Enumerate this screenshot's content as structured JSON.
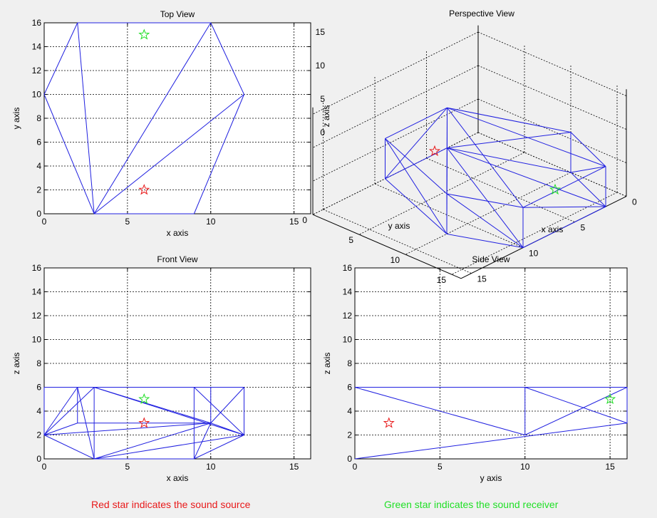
{
  "colors": {
    "wire": "#2020e0",
    "source": "#e8191a",
    "receiver": "#1fdf25",
    "caption_source": "#e8191a",
    "caption_receiver": "#1fdf25"
  },
  "captions": {
    "source": "Red star indicates the sound source",
    "receiver": "Green star indicates the sound receiver"
  },
  "chart_data": [
    {
      "type": "line",
      "title": "Top View",
      "xlabel": "x axis",
      "ylabel": "y axis",
      "xlim": [
        0,
        16
      ],
      "ylim": [
        0,
        16
      ],
      "xticks": [
        0,
        5,
        10,
        15
      ],
      "yticks": [
        0,
        2,
        4,
        6,
        8,
        10,
        12,
        14,
        16
      ],
      "grid": true,
      "segments": [
        [
          [
            2,
            16
          ],
          [
            10,
            16
          ]
        ],
        [
          [
            10,
            16
          ],
          [
            12,
            10
          ]
        ],
        [
          [
            12,
            10
          ],
          [
            9,
            0
          ]
        ],
        [
          [
            0,
            10
          ],
          [
            2,
            16
          ]
        ],
        [
          [
            0,
            10
          ],
          [
            3,
            0
          ]
        ],
        [
          [
            3,
            0
          ],
          [
            9,
            0
          ]
        ],
        [
          [
            2,
            16
          ],
          [
            3,
            0
          ]
        ],
        [
          [
            10,
            16
          ],
          [
            3,
            0
          ]
        ],
        [
          [
            12,
            10
          ],
          [
            3,
            0
          ]
        ]
      ],
      "markers": [
        {
          "x": 6,
          "y": 2,
          "role": "source"
        },
        {
          "x": 6,
          "y": 15,
          "role": "receiver"
        }
      ]
    },
    {
      "type": "line",
      "title": "Perspective View",
      "xlabel": "x axis",
      "ylabel": "y axis",
      "zlabel": "z axis",
      "xticks": [
        "0",
        "5",
        "10",
        "15"
      ],
      "yticks": [
        "0",
        "5",
        "10",
        "15"
      ],
      "zticks": [
        "0",
        "5",
        "10",
        "15"
      ],
      "grid": true,
      "projection": "3d",
      "markers": [
        {
          "x": 6,
          "y": 2,
          "z": 3,
          "role": "source"
        },
        {
          "x": 6,
          "y": 15,
          "z": 5,
          "role": "receiver"
        }
      ]
    },
    {
      "type": "line",
      "title": "Front View",
      "xlabel": "x axis",
      "ylabel": "z axis",
      "xlim": [
        0,
        16
      ],
      "ylim": [
        0,
        16
      ],
      "xticks": [
        0,
        5,
        10,
        15
      ],
      "yticks": [
        0,
        2,
        4,
        6,
        8,
        10,
        12,
        14,
        16
      ],
      "grid": true,
      "segments": [
        [
          [
            0,
            6
          ],
          [
            12,
            6
          ]
        ],
        [
          [
            0,
            6
          ],
          [
            0,
            2
          ]
        ],
        [
          [
            0,
            2
          ],
          [
            2,
            6
          ]
        ],
        [
          [
            0,
            2
          ],
          [
            3,
            6
          ]
        ],
        [
          [
            0,
            2
          ],
          [
            2,
            3
          ]
        ],
        [
          [
            0,
            2
          ],
          [
            3,
            0
          ]
        ],
        [
          [
            0,
            2
          ],
          [
            10,
            3
          ]
        ],
        [
          [
            2,
            6
          ],
          [
            2,
            3
          ]
        ],
        [
          [
            2,
            6
          ],
          [
            3,
            0
          ]
        ],
        [
          [
            3,
            6
          ],
          [
            3,
            0
          ]
        ],
        [
          [
            3,
            6
          ],
          [
            10,
            3
          ]
        ],
        [
          [
            3,
            6
          ],
          [
            12,
            2
          ]
        ],
        [
          [
            2,
            3
          ],
          [
            10,
            3
          ]
        ],
        [
          [
            3,
            0
          ],
          [
            9,
            0
          ]
        ],
        [
          [
            3,
            0
          ],
          [
            10,
            3
          ]
        ],
        [
          [
            3,
            0
          ],
          [
            12,
            2
          ]
        ],
        [
          [
            9,
            0
          ],
          [
            10,
            3
          ]
        ],
        [
          [
            9,
            0
          ],
          [
            12,
            2
          ]
        ],
        [
          [
            9,
            6
          ],
          [
            9,
            0
          ]
        ],
        [
          [
            10,
            6
          ],
          [
            10,
            3
          ]
        ],
        [
          [
            12,
            6
          ],
          [
            12,
            2
          ]
        ],
        [
          [
            9,
            6
          ],
          [
            12,
            2
          ]
        ],
        [
          [
            10,
            3
          ],
          [
            12,
            6
          ]
        ],
        [
          [
            10,
            3
          ],
          [
            12,
            2
          ]
        ]
      ],
      "markers": [
        {
          "x": 6,
          "y": 3,
          "role": "source"
        },
        {
          "x": 6,
          "y": 5,
          "role": "receiver"
        }
      ]
    },
    {
      "type": "line",
      "title": "Side View",
      "xlabel": "y axis",
      "ylabel": "z axis",
      "xlim": [
        0,
        16
      ],
      "ylim": [
        0,
        16
      ],
      "xticks": [
        0,
        5,
        10,
        15
      ],
      "yticks": [
        0,
        2,
        4,
        6,
        8,
        10,
        12,
        14,
        16
      ],
      "grid": true,
      "segments": [
        [
          [
            0,
            6
          ],
          [
            16,
            6
          ]
        ],
        [
          [
            0,
            6
          ],
          [
            10,
            2
          ]
        ],
        [
          [
            0,
            0
          ],
          [
            16,
            3
          ]
        ],
        [
          [
            10,
            6
          ],
          [
            10,
            2
          ]
        ],
        [
          [
            10,
            2
          ],
          [
            16,
            6
          ]
        ],
        [
          [
            10,
            6
          ],
          [
            16,
            3
          ]
        ],
        [
          [
            16,
            6
          ],
          [
            16,
            3
          ]
        ]
      ],
      "markers": [
        {
          "x": 2,
          "y": 3,
          "role": "source"
        },
        {
          "x": 15,
          "y": 5,
          "role": "receiver"
        }
      ]
    }
  ]
}
